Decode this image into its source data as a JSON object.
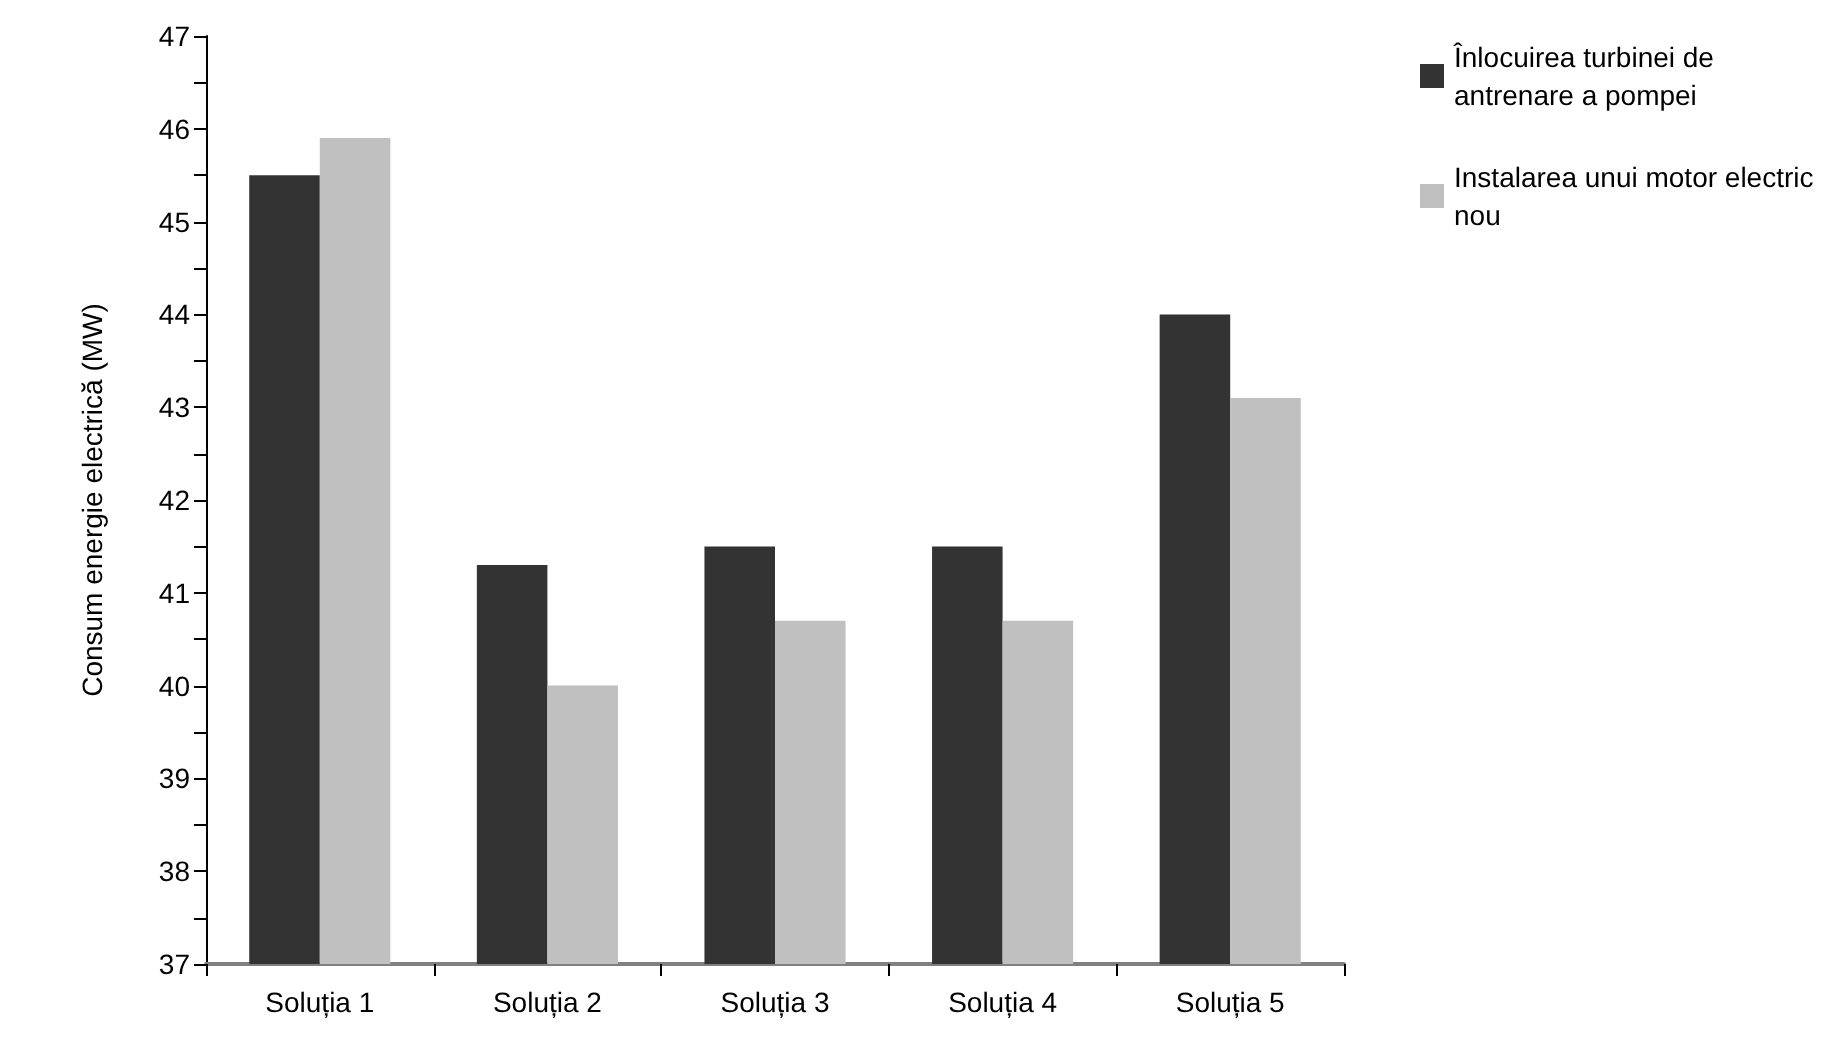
{
  "chart_data": {
    "type": "bar",
    "ylabel": "Consum energie electrică (MW)",
    "categories": [
      "Soluția 1",
      "Soluția 2",
      "Soluția 3",
      "Soluția 4",
      "Soluția 5"
    ],
    "series": [
      {
        "name": "Înlocuirea turbinei de antrenare a pompei",
        "color": "#333333",
        "values": [
          45.5,
          41.3,
          41.5,
          41.5,
          44.0
        ]
      },
      {
        "name": "Instalarea unui motor electric nou",
        "color": "#c0c0c0",
        "values": [
          45.9,
          40.0,
          40.7,
          40.7,
          43.1
        ]
      }
    ],
    "ylim": [
      37,
      47
    ],
    "yticks": [
      37,
      {
        "value": 37.5,
        "label": null
      },
      38,
      {
        "value": 38.5,
        "label": null
      },
      39,
      {
        "value": 39.5,
        "label": null
      },
      40,
      {
        "value": 40.5,
        "label": null
      },
      41,
      {
        "value": 41.5,
        "label": null
      },
      42,
      {
        "value": 42.5,
        "label": null
      },
      43,
      {
        "value": 43.5,
        "label": null
      },
      44,
      {
        "value": 44.5,
        "label": null
      },
      45,
      {
        "value": 45.5,
        "label": null
      },
      46,
      {
        "value": 46.5,
        "label": null
      },
      47
    ],
    "grid": false,
    "legend": "right"
  }
}
